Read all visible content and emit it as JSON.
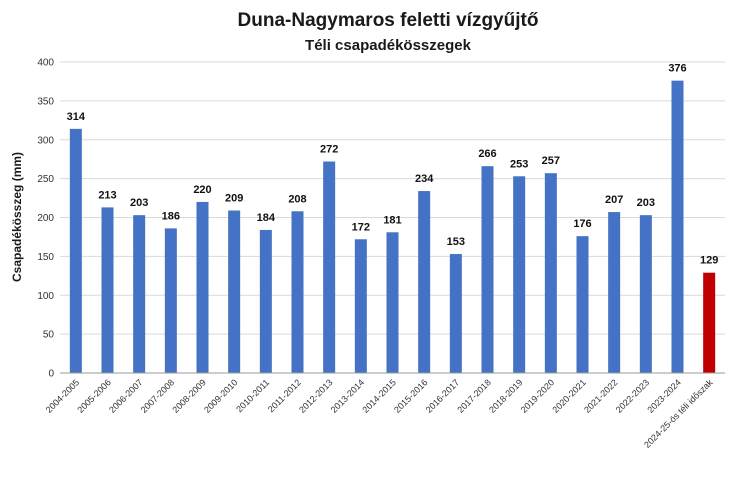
{
  "chart_data": {
    "type": "bar",
    "title": "Duna-Nagymaros feletti vízgyűjtő",
    "subtitle": "Téli csapadékösszegek",
    "xlabel": "",
    "ylabel": "Csapadékösszeg (mm)",
    "ylim": [
      0,
      400
    ],
    "yticks": [
      0,
      50,
      100,
      150,
      200,
      250,
      300,
      350,
      400
    ],
    "grid": true,
    "legend": "none",
    "categories": [
      "2004-2005",
      "2005-2006",
      "2006-2007",
      "2007-2008",
      "2008-2009",
      "2009-2010",
      "2010-2011",
      "2011-2012",
      "2012-2013",
      "2013-2014",
      "2014-2015",
      "2015-2016",
      "2016-2017",
      "2017-2018",
      "2018-2019",
      "2019-2020",
      "2020-2021",
      "2021-2022",
      "2022-2023",
      "2023-2024",
      "2024-25-ös téli időszak"
    ],
    "values": [
      314,
      213,
      203,
      186,
      220,
      209,
      184,
      208,
      272,
      172,
      181,
      234,
      153,
      266,
      253,
      257,
      176,
      207,
      203,
      376,
      129
    ],
    "colors": [
      "#4472C4",
      "#4472C4",
      "#4472C4",
      "#4472C4",
      "#4472C4",
      "#4472C4",
      "#4472C4",
      "#4472C4",
      "#4472C4",
      "#4472C4",
      "#4472C4",
      "#4472C4",
      "#4472C4",
      "#4472C4",
      "#4472C4",
      "#4472C4",
      "#4472C4",
      "#4472C4",
      "#4472C4",
      "#4472C4",
      "#C00000"
    ]
  }
}
